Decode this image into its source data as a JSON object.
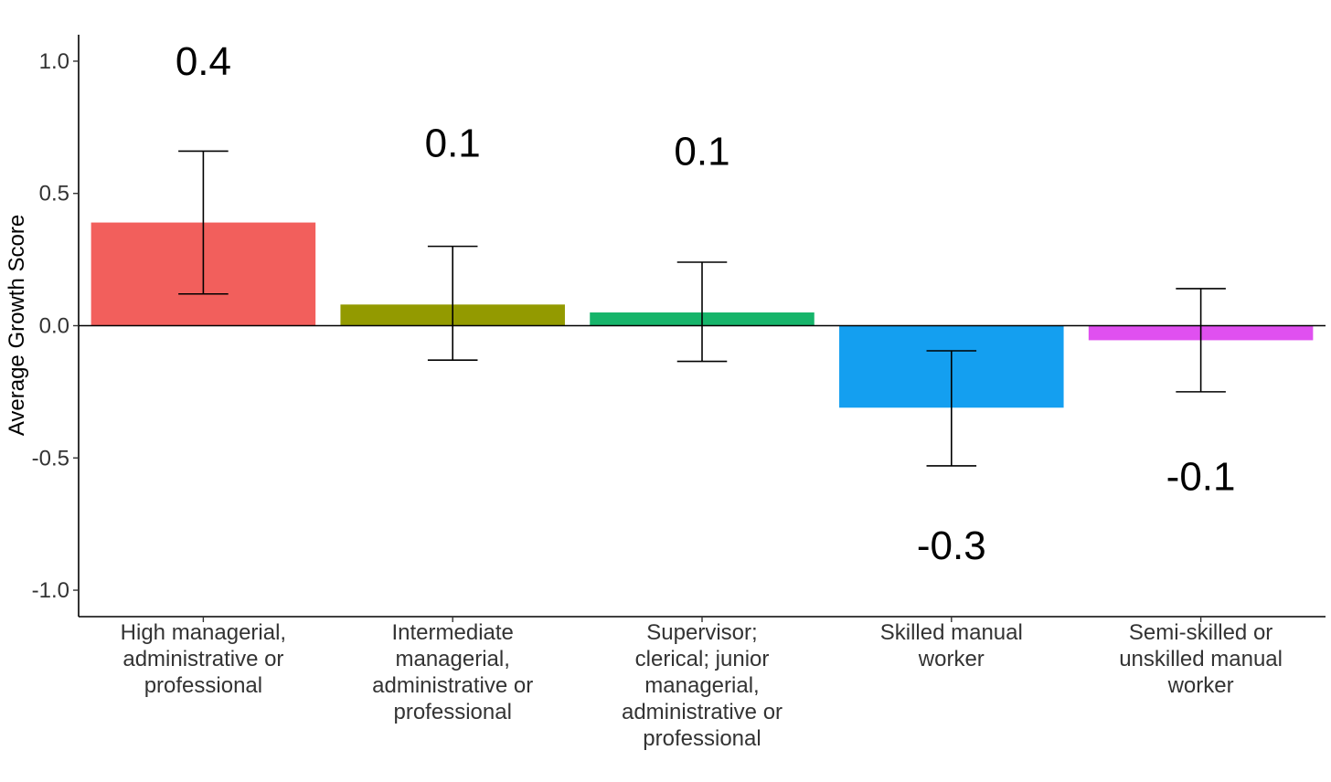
{
  "chart_data": {
    "type": "bar",
    "title": "",
    "xlabel": "",
    "ylabel": "Average Growth Score",
    "ylim": [
      -1.1,
      1.1
    ],
    "yticks": [
      -1.0,
      -0.5,
      0.0,
      0.5,
      1.0
    ],
    "ytick_labels": [
      "-1.0",
      "-0.5",
      "0.0",
      "0.5",
      "1.0"
    ],
    "grid": false,
    "legend": "none",
    "categories": [
      "High managerial, administrative or professional",
      "Intermediate managerial, administrative or professional",
      "Supervisor; clerical; junior managerial, administrative or professional",
      "Skilled manual worker",
      "Semi-skilled or unskilled manual worker"
    ],
    "category_label_lines": [
      [
        "High managerial,",
        "administrative or",
        "professional"
      ],
      [
        "Intermediate",
        "managerial,",
        "administrative or",
        "professional"
      ],
      [
        "Supervisor;",
        "clerical; junior",
        "managerial,",
        "administrative or",
        "professional"
      ],
      [
        "Skilled manual",
        "worker"
      ],
      [
        "Semi-skilled or",
        "unskilled manual",
        "worker"
      ]
    ],
    "values": [
      0.39,
      0.08,
      0.05,
      -0.31,
      -0.055
    ],
    "error_low": [
      0.12,
      -0.13,
      -0.135,
      -0.53,
      -0.25
    ],
    "error_high": [
      0.66,
      0.3,
      0.24,
      -0.095,
      0.14
    ],
    "data_labels": [
      "0.4",
      "0.1",
      "0.1",
      "-0.3",
      "-0.1"
    ],
    "data_label_y": [
      1.0,
      0.69,
      0.66,
      -0.83,
      -0.57
    ],
    "colors": [
      "#F25F5C",
      "#939A00",
      "#16B46A",
      "#149FF0",
      "#E050F0"
    ]
  }
}
